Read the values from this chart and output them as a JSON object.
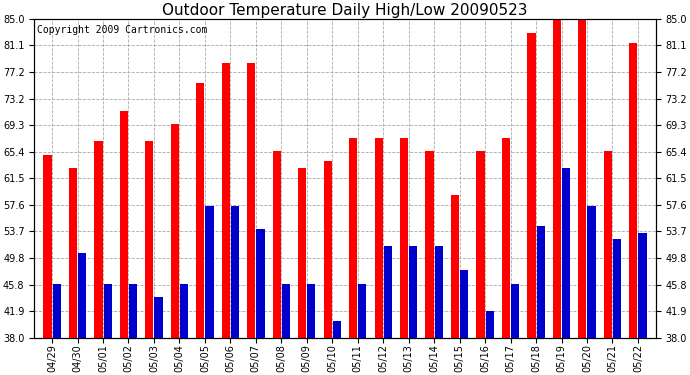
{
  "title": "Outdoor Temperature Daily High/Low 20090523",
  "copyright": "Copyright 2009 Cartronics.com",
  "labels": [
    "04/29",
    "04/30",
    "05/01",
    "05/02",
    "05/03",
    "05/04",
    "05/05",
    "05/06",
    "05/07",
    "05/08",
    "05/09",
    "05/10",
    "05/11",
    "05/12",
    "05/13",
    "05/14",
    "05/15",
    "05/16",
    "05/17",
    "05/18",
    "05/19",
    "05/20",
    "05/21",
    "05/22"
  ],
  "highs": [
    65.0,
    63.0,
    67.0,
    71.5,
    67.0,
    69.5,
    75.5,
    78.5,
    78.5,
    65.5,
    63.0,
    64.0,
    67.5,
    67.5,
    67.5,
    65.5,
    59.0,
    65.5,
    67.5,
    83.0,
    85.0,
    85.0,
    65.5,
    81.5
  ],
  "lows": [
    46.0,
    50.5,
    46.0,
    46.0,
    44.0,
    46.0,
    57.5,
    57.5,
    54.0,
    46.0,
    46.0,
    40.5,
    46.0,
    51.5,
    51.5,
    51.5,
    48.0,
    42.0,
    46.0,
    54.5,
    63.0,
    57.5,
    52.5,
    53.5
  ],
  "high_color": "#ff0000",
  "low_color": "#0000cc",
  "background_color": "#ffffff",
  "grid_color": "#aaaaaa",
  "ylim_min": 38.0,
  "ylim_max": 85.0,
  "yticks": [
    38.0,
    41.9,
    45.8,
    49.8,
    53.7,
    57.6,
    61.5,
    65.4,
    69.3,
    73.2,
    77.2,
    81.1,
    85.0
  ],
  "title_fontsize": 11,
  "copyright_fontsize": 7,
  "tick_fontsize": 7,
  "bar_width": 0.32,
  "bar_gap": 0.04
}
